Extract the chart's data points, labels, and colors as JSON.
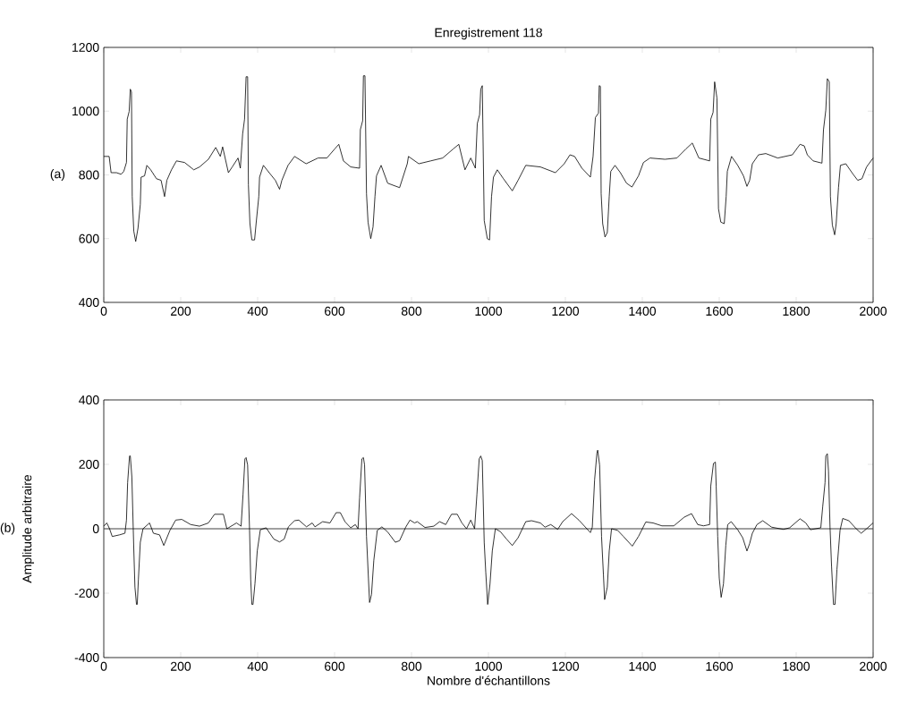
{
  "chart_data": [
    {
      "type": "line",
      "title": "Enregistrement 118",
      "annotations": [
        "(a)"
      ],
      "xlim": [
        0,
        2000
      ],
      "ylim": [
        400,
        1200
      ],
      "xticks": [
        0,
        200,
        400,
        600,
        800,
        1000,
        1200,
        1400,
        1600,
        1800,
        2000
      ],
      "yticks": [
        400,
        600,
        800,
        1000,
        1200
      ],
      "grid": false,
      "series": [
        {
          "color": "#000000",
          "x": [
            0,
            14,
            19,
            33,
            45,
            52,
            59,
            61,
            66,
            69,
            72,
            74,
            78,
            83,
            89,
            95,
            97,
            106,
            112,
            122,
            137,
            149,
            158,
            164,
            176,
            189,
            210,
            234,
            249,
            272,
            291,
            303,
            309,
            324,
            334,
            349,
            355,
            361,
            366,
            370,
            374,
            376,
            380,
            385,
            392,
            396,
            403,
            405,
            415,
            430,
            446,
            457,
            463,
            479,
            496,
            526,
            557,
            580,
            600,
            611,
            623,
            642,
            665,
            667,
            673,
            675,
            679,
            683,
            687,
            694,
            700,
            705,
            709,
            721,
            738,
            769,
            789,
            792,
            819,
            850,
            881,
            908,
            923,
            939,
            954,
            966,
            971,
            977,
            980,
            984,
            989,
            997,
            1003,
            1008,
            1013,
            1023,
            1039,
            1062,
            1077,
            1097,
            1135,
            1174,
            1197,
            1212,
            1224,
            1243,
            1265,
            1272,
            1278,
            1286,
            1288,
            1291,
            1293,
            1297,
            1303,
            1309,
            1314,
            1318,
            1329,
            1343,
            1359,
            1373,
            1390,
            1403,
            1420,
            1459,
            1490,
            1513,
            1530,
            1547,
            1575,
            1578,
            1584,
            1588,
            1594,
            1598,
            1604,
            1613,
            1618,
            1621,
            1632,
            1648,
            1663,
            1672,
            1679,
            1686,
            1702,
            1721,
            1752,
            1790,
            1810,
            1821,
            1829,
            1844,
            1867,
            1871,
            1877,
            1881,
            1886,
            1889,
            1894,
            1900,
            1904,
            1910,
            1915,
            1929,
            1948,
            1960,
            1971,
            1983,
            2000
          ],
          "values": [
            858,
            858,
            807,
            807,
            802,
            811,
            839,
            975,
            999,
            1069,
            1060,
            732,
            624,
            591,
            633,
            708,
            793,
            797,
            830,
            816,
            788,
            783,
            732,
            783,
            816,
            844,
            839,
            816,
            825,
            849,
            886,
            858,
            888,
            807,
            825,
            853,
            821,
            928,
            975,
            1108,
            1108,
            769,
            647,
            596,
            596,
            647,
            732,
            793,
            830,
            807,
            783,
            755,
            783,
            830,
            858,
            835,
            853,
            853,
            881,
            896,
            844,
            825,
            821,
            942,
            970,
            1111,
            1111,
            741,
            652,
            600,
            637,
            732,
            797,
            830,
            774,
            760,
            835,
            858,
            835,
            844,
            853,
            881,
            896,
            816,
            853,
            821,
            961,
            989,
            1069,
            1080,
            657,
            600,
            596,
            732,
            793,
            816,
            788,
            750,
            783,
            830,
            825,
            807,
            835,
            863,
            858,
            821,
            793,
            858,
            980,
            994,
            1080,
            1078,
            741,
            647,
            605,
            619,
            732,
            811,
            830,
            807,
            774,
            762,
            797,
            839,
            853,
            849,
            853,
            881,
            900,
            853,
            844,
            975,
            996,
            1092,
            1041,
            694,
            652,
            647,
            732,
            811,
            858,
            830,
            797,
            764,
            783,
            835,
            863,
            867,
            853,
            863,
            896,
            891,
            863,
            844,
            837,
            942,
            1003,
            1102,
            1092,
            732,
            643,
            612,
            647,
            760,
            830,
            835,
            802,
            783,
            788,
            825,
            853
          ]
        }
      ]
    },
    {
      "type": "line",
      "xlabel": "Nombre d'échantillons",
      "ylabel": "Amplitude arbitraire",
      "annotations": [
        "(b)"
      ],
      "xlim": [
        0,
        2000
      ],
      "ylim": [
        -400,
        400
      ],
      "xticks": [
        0,
        200,
        400,
        600,
        800,
        1000,
        1200,
        1400,
        1600,
        1800,
        2000
      ],
      "yticks": [
        -400,
        -200,
        0,
        200,
        400
      ],
      "grid": false,
      "ref_lines": [
        {
          "axis": "y",
          "value": 0,
          "color": "#404040"
        }
      ],
      "series": [
        {
          "color": "#000000",
          "x": [
            0,
            8,
            15,
            22,
            41,
            55,
            59,
            62,
            67,
            69,
            73,
            78,
            81,
            85,
            87,
            90,
            95,
            102,
            119,
            129,
            145,
            156,
            172,
            187,
            203,
            226,
            249,
            272,
            288,
            311,
            320,
            345,
            357,
            362,
            367,
            370,
            374,
            379,
            382,
            385,
            388,
            393,
            399,
            407,
            422,
            442,
            457,
            469,
            480,
            496,
            507,
            527,
            542,
            549,
            569,
            588,
            604,
            615,
            627,
            642,
            654,
            661,
            665,
            671,
            675,
            678,
            683,
            688,
            691,
            696,
            702,
            711,
            723,
            738,
            758,
            769,
            785,
            796,
            808,
            815,
            835,
            858,
            873,
            889,
            904,
            919,
            931,
            943,
            954,
            964,
            970,
            976,
            980,
            984,
            989,
            993,
            998,
            1004,
            1010,
            1018,
            1031,
            1047,
            1062,
            1077,
            1097,
            1112,
            1135,
            1147,
            1162,
            1180,
            1193,
            1216,
            1235,
            1265,
            1270,
            1276,
            1282,
            1284,
            1289,
            1294,
            1299,
            1302,
            1309,
            1314,
            1320,
            1336,
            1351,
            1374,
            1390,
            1409,
            1428,
            1451,
            1482,
            1509,
            1528,
            1544,
            1559,
            1575,
            1578,
            1585,
            1590,
            1592,
            1596,
            1600,
            1605,
            1611,
            1617,
            1622,
            1631,
            1648,
            1661,
            1672,
            1679,
            1686,
            1698,
            1713,
            1736,
            1767,
            1783,
            1810,
            1825,
            1837,
            1864,
            1869,
            1875,
            1877,
            1881,
            1884,
            1888,
            1892,
            1897,
            1901,
            1906,
            1914,
            1921,
            1937,
            1956,
            1969,
            1983,
            2000
          ],
          "values": [
            8,
            18,
            0,
            -24,
            -19,
            -14,
            27,
            143,
            226,
            226,
            161,
            -61,
            -181,
            -235,
            -235,
            -158,
            -42,
            0,
            18,
            -14,
            -19,
            -52,
            -5,
            27,
            29,
            13,
            8,
            18,
            45,
            45,
            0,
            18,
            8,
            106,
            217,
            221,
            198,
            -5,
            -158,
            -235,
            -235,
            -171,
            -69,
            -3,
            3,
            -32,
            -41,
            -32,
            6,
            25,
            27,
            6,
            18,
            6,
            22,
            18,
            50,
            50,
            22,
            3,
            13,
            0,
            96,
            217,
            221,
            198,
            -24,
            -153,
            -229,
            -204,
            -98,
            -5,
            6,
            -10,
            -42,
            -37,
            5,
            27,
            18,
            22,
            4,
            8,
            22,
            13,
            45,
            45,
            18,
            0,
            27,
            0,
            106,
            217,
            226,
            212,
            -42,
            -134,
            -235,
            -172,
            -69,
            0,
            -9,
            -32,
            -52,
            -28,
            22,
            25,
            18,
            5,
            13,
            -2,
            22,
            47,
            27,
            -12,
            5,
            152,
            235,
            244,
            198,
            -24,
            -144,
            -220,
            -181,
            -69,
            0,
            -5,
            -24,
            -54,
            -24,
            21,
            18,
            9,
            9,
            36,
            47,
            13,
            9,
            13,
            133,
            203,
            207,
            133,
            -24,
            -153,
            -213,
            -171,
            -52,
            13,
            22,
            -3,
            -28,
            -69,
            -46,
            -14,
            13,
            25,
            5,
            -2,
            3,
            31,
            18,
            -3,
            3,
            69,
            143,
            226,
            233,
            180,
            5,
            -117,
            -235,
            -235,
            -126,
            -5,
            32,
            25,
            0,
            -14,
            0,
            18
          ]
        }
      ]
    }
  ]
}
